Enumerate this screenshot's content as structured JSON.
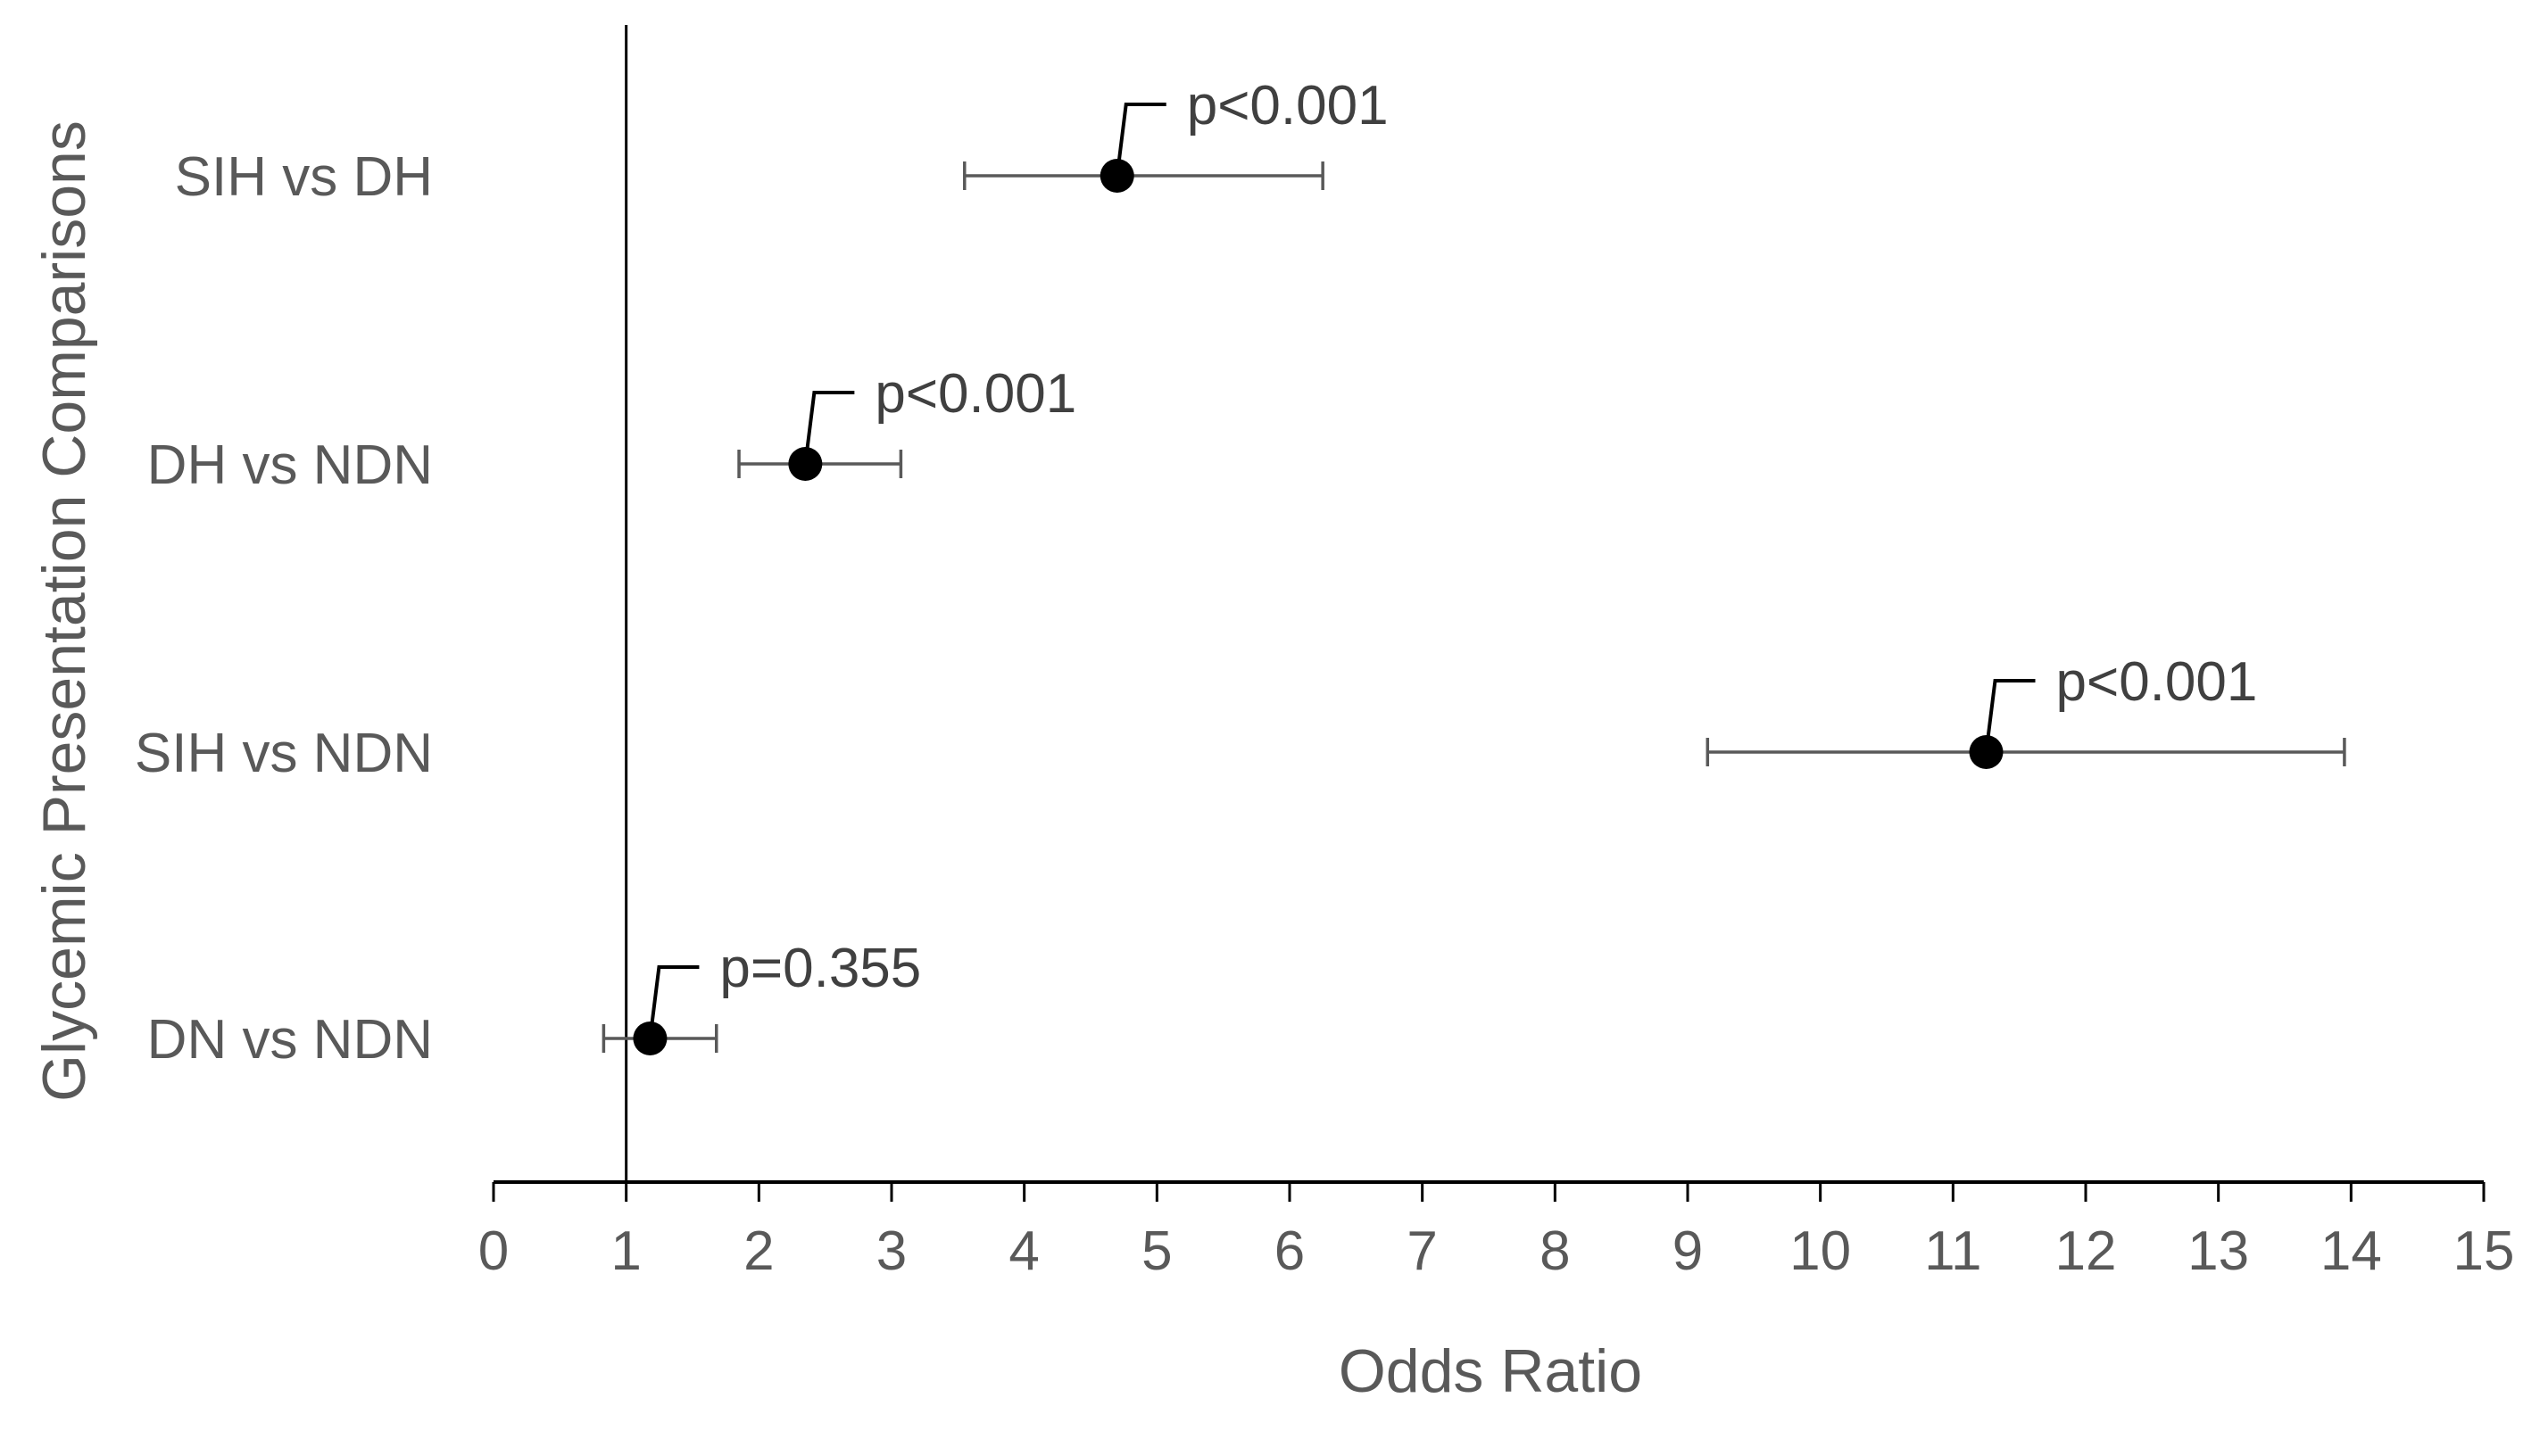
{
  "chart_data": {
    "type": "scatter",
    "subtype": "forest-plot",
    "title": "",
    "xlabel": "Odds Ratio",
    "ylabel": "Glycemic Presentation Comparisons",
    "xlim": [
      0,
      15
    ],
    "x_ticks": [
      "0",
      "1",
      "2",
      "3",
      "4",
      "5",
      "6",
      "7",
      "8",
      "9",
      "10",
      "11",
      "12",
      "13",
      "14",
      "15"
    ],
    "reference_line": 1,
    "grid": false,
    "series": [
      {
        "category": "SIH vs DH",
        "or": 4.7,
        "ci_low": 3.55,
        "ci_high": 6.25,
        "p_label": "p<0.001"
      },
      {
        "category": "DH vs NDN",
        "or": 2.35,
        "ci_low": 1.85,
        "ci_high": 3.07,
        "p_label": "p<0.001"
      },
      {
        "category": "SIH vs NDN",
        "or": 11.25,
        "ci_low": 9.15,
        "ci_high": 13.95,
        "p_label": "p<0.001"
      },
      {
        "category": "DN vs NDN",
        "or": 1.18,
        "ci_low": 0.83,
        "ci_high": 1.68,
        "p_label": "p=0.355"
      }
    ],
    "colors": {
      "point": "#000000",
      "errorbar": "#595959",
      "axis": "#000000",
      "text": "#595959"
    }
  }
}
